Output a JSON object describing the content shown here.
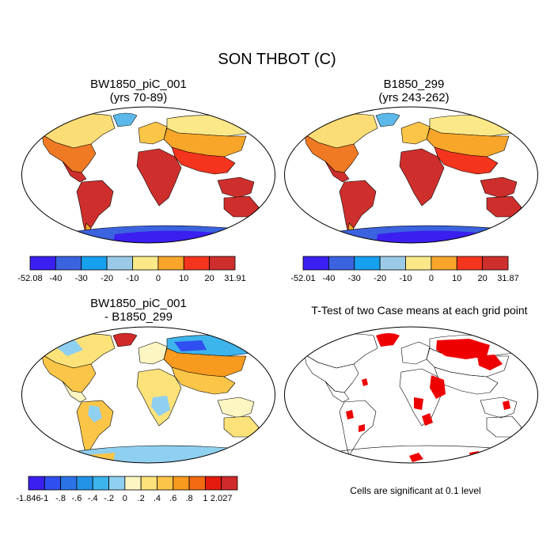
{
  "title": "SON THBOT (C)",
  "panels": [
    {
      "title_line1": "BW1850_piC_001",
      "title_line2": "(yrs 70-89)"
    },
    {
      "title_line1": "B1850_299",
      "title_line2": "(yrs 243-262)"
    },
    {
      "title_line1": "BW1850_piC_001",
      "title_line2": "- B1850_299"
    },
    {
      "title_line1": "T-Test of two Case means at each grid point",
      "title_line2": ""
    }
  ],
  "significance_note": "Cells are significant at 0.1 level",
  "colorbars": [
    {
      "labels": [
        "-52.08",
        "-40",
        "-30",
        "-20",
        "-10",
        "0",
        "10",
        "20",
        "31.91"
      ],
      "colors": [
        "#3a1ff0",
        "#3b63e0",
        "#16a0f0",
        "#9bcae6",
        "#fbe989",
        "#f7a62a",
        "#f4341d",
        "#cf2f2c"
      ]
    },
    {
      "labels": [
        "-52.01",
        "-40",
        "-30",
        "-20",
        "-10",
        "0",
        "10",
        "20",
        "31.87"
      ],
      "colors": [
        "#3a1ff0",
        "#3b63e0",
        "#16a0f0",
        "#9bcae6",
        "#fbe989",
        "#f7a62a",
        "#f4341d",
        "#cf2f2c"
      ]
    },
    {
      "labels": [
        "-1.846",
        "-1",
        "-.8",
        "-.6",
        "-.4",
        "-.2",
        "0",
        ".2",
        ".4",
        ".6",
        ".8",
        "1",
        "2.027"
      ],
      "colors": [
        "#3a1ff0",
        "#2f4ff0",
        "#2a73e6",
        "#2393e6",
        "#3db4ec",
        "#8fd0f0",
        "#fdf6c2",
        "#fde27a",
        "#fbc547",
        "#f79a1e",
        "#f26a12",
        "#e41b0e",
        "#d02a2a"
      ]
    }
  ]
}
